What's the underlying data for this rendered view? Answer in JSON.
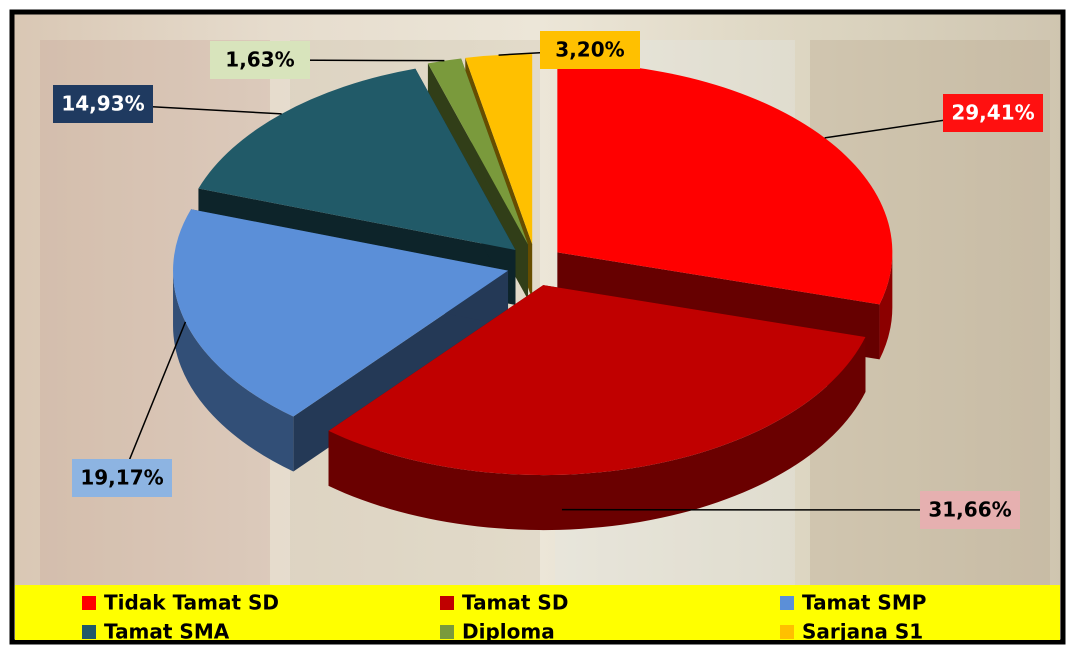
{
  "chart_data": {
    "type": "pie",
    "categories": [
      "Tidak Tamat SD",
      "Tamat SD",
      "Tamat SMP",
      "Tamat SMA",
      "Diploma",
      "Sarjana S1"
    ],
    "values": [
      29.41,
      31.66,
      19.17,
      14.93,
      1.63,
      3.2
    ],
    "value_labels": [
      "29,41%",
      "31,66%",
      "19,17%",
      "14,93%",
      "1,63%",
      "3,20%"
    ],
    "colors": [
      "#ff0000",
      "#c00000",
      "#5b8fd8",
      "#215a68",
      "#7a9a3c",
      "#ffc000"
    ],
    "label_colors": [
      "#ff1010",
      "#e6b0b0",
      "#8db4e2",
      "#1f3a60",
      "#d8e4bc",
      "#ffc000"
    ],
    "label_text_colors": [
      "#ffffff",
      "#000000",
      "#000000",
      "#ffffff",
      "#000000",
      "#000000"
    ],
    "legend": "bottom"
  }
}
